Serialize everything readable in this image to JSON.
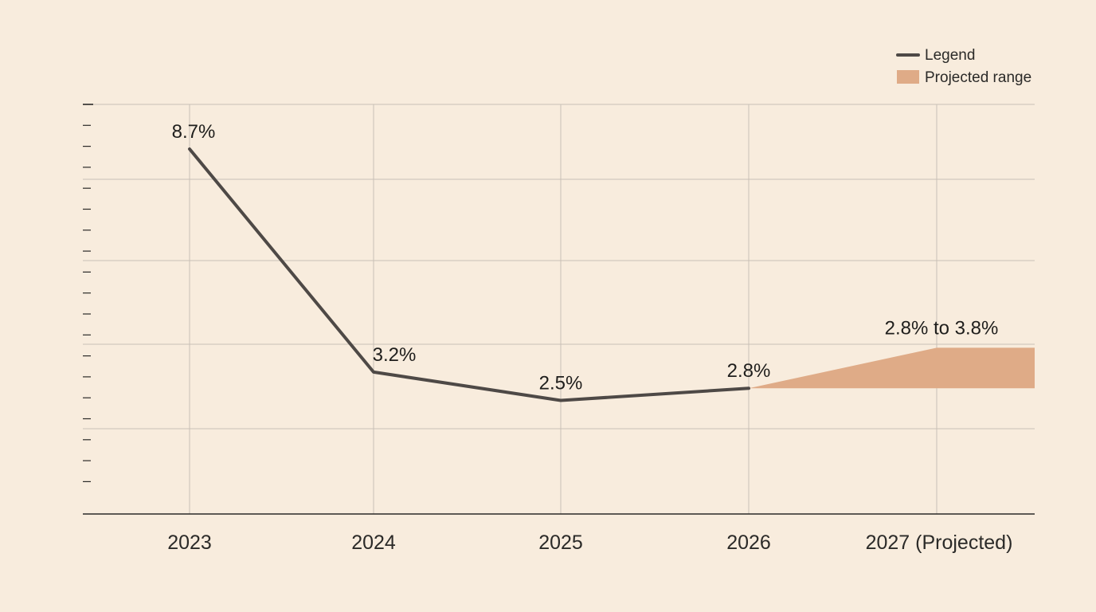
{
  "chart_data": {
    "type": "line",
    "categories": [
      "2023",
      "2024",
      "2025",
      "2026",
      "2027 (Projected)"
    ],
    "series": [
      {
        "name": "Legend",
        "values": [
          8.7,
          3.2,
          2.5,
          2.8,
          null
        ],
        "value_labels": [
          "8.7%",
          "3.2%",
          "2.5%",
          "2.8%",
          null
        ],
        "color": "#4e4946"
      }
    ],
    "projected_range": {
      "name": "Projected range",
      "category": "2027 (Projected)",
      "from_category": "2026",
      "low": 2.8,
      "high": 3.8,
      "label": "2.8% to 3.8%",
      "color": "#dfab87"
    },
    "title": "",
    "xlabel": "",
    "ylabel": "",
    "ylim": [
      -0.3,
      9.8
    ],
    "grid": true,
    "legend_position": "top-right",
    "colors": {
      "background": "#f8ecdd",
      "grid": "#c9c0b6",
      "axis": "#2b2a28"
    }
  }
}
